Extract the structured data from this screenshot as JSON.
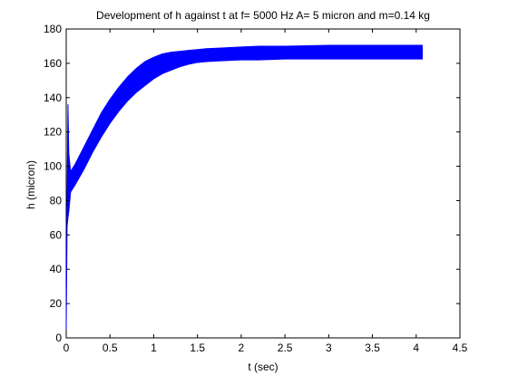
{
  "chart_data": {
    "type": "line",
    "title": "Development of h against t at f= 5000 Hz A= 5 micron and m=0.14 kg",
    "xlabel": "t (sec)",
    "ylabel": "h (micron)",
    "xlim": [
      0,
      4.5
    ],
    "ylim": [
      0,
      180
    ],
    "x_ticks": [
      0,
      0.5,
      1,
      1.5,
      2,
      2.5,
      3,
      3.5,
      4,
      4.5
    ],
    "x_tick_labels": [
      "0",
      "0.5",
      "1",
      "1.5",
      "2",
      "2.5",
      "3",
      "3.5",
      "4",
      "4.5"
    ],
    "y_ticks": [
      0,
      20,
      40,
      60,
      80,
      100,
      120,
      140,
      160,
      180
    ],
    "y_tick_labels": [
      "0",
      "20",
      "40",
      "60",
      "80",
      "100",
      "120",
      "140",
      "160",
      "180"
    ],
    "grid": false,
    "legend": "none",
    "series": [
      {
        "color": "#0000ff",
        "x": [
          0,
          0.01,
          0.02,
          0.03,
          0.05,
          0.1,
          0.2,
          0.3,
          0.4,
          0.5,
          0.6,
          0.7,
          0.8,
          0.9,
          1.0,
          1.1,
          1.2,
          1.3,
          1.4,
          1.5,
          1.6,
          1.8,
          2.0,
          2.2,
          2.5,
          3.0,
          3.5,
          4.0,
          4.07
        ],
        "upper": [
          10,
          80,
          136,
          107,
          97,
          101,
          111,
          121,
          131,
          139,
          146,
          152,
          157,
          161,
          163.5,
          165.5,
          166.5,
          167,
          167.5,
          168,
          168.5,
          169,
          169.5,
          170,
          170,
          170.5,
          170.5,
          170.5,
          170.5
        ],
        "lower": [
          5,
          65,
          70,
          74,
          85,
          89,
          98,
          108,
          117,
          125,
          132,
          138,
          143,
          147,
          151,
          154,
          156,
          158,
          159.5,
          160.5,
          161,
          161.5,
          162,
          162,
          162.5,
          162.5,
          162.5,
          162.5,
          162.5
        ]
      }
    ]
  }
}
